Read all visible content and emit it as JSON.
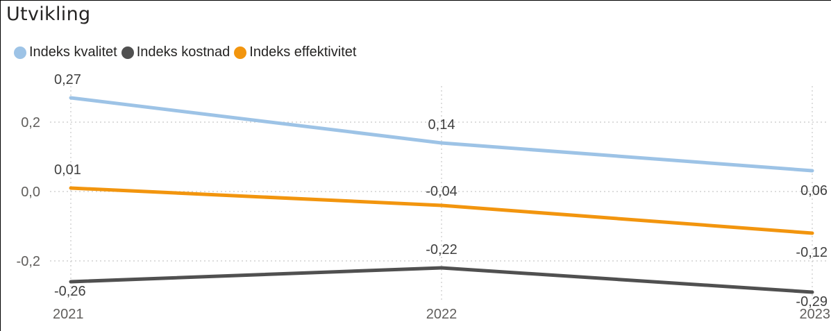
{
  "title": "Utvikling",
  "chart_data": {
    "type": "line",
    "title": "Utvikling",
    "categories": [
      "2021",
      "2022",
      "2023"
    ],
    "ylim": [
      -0.29,
      0.29
    ],
    "yticks": [
      {
        "value": 0.2,
        "label": "0,2"
      },
      {
        "value": 0.0,
        "label": "0,0"
      },
      {
        "value": -0.2,
        "label": "-0,2"
      }
    ],
    "grid": true,
    "legend_position": "top-left",
    "series": [
      {
        "name": "Indeks kvalitet",
        "color": "#9DC3E6",
        "values": [
          0.27,
          0.14,
          0.06
        ],
        "labels": [
          "0,27",
          "0,14",
          "0,06"
        ]
      },
      {
        "name": "Indeks kostnad",
        "color": "#505050",
        "values": [
          -0.26,
          -0.22,
          -0.29
        ],
        "labels": [
          "-0,26",
          "-0,22",
          "-0,29"
        ]
      },
      {
        "name": "Indeks effektivitet",
        "color": "#F2950E",
        "values": [
          0.01,
          -0.04,
          -0.12
        ],
        "labels": [
          "0,01",
          "-0,04",
          "-0,12"
        ]
      }
    ]
  }
}
